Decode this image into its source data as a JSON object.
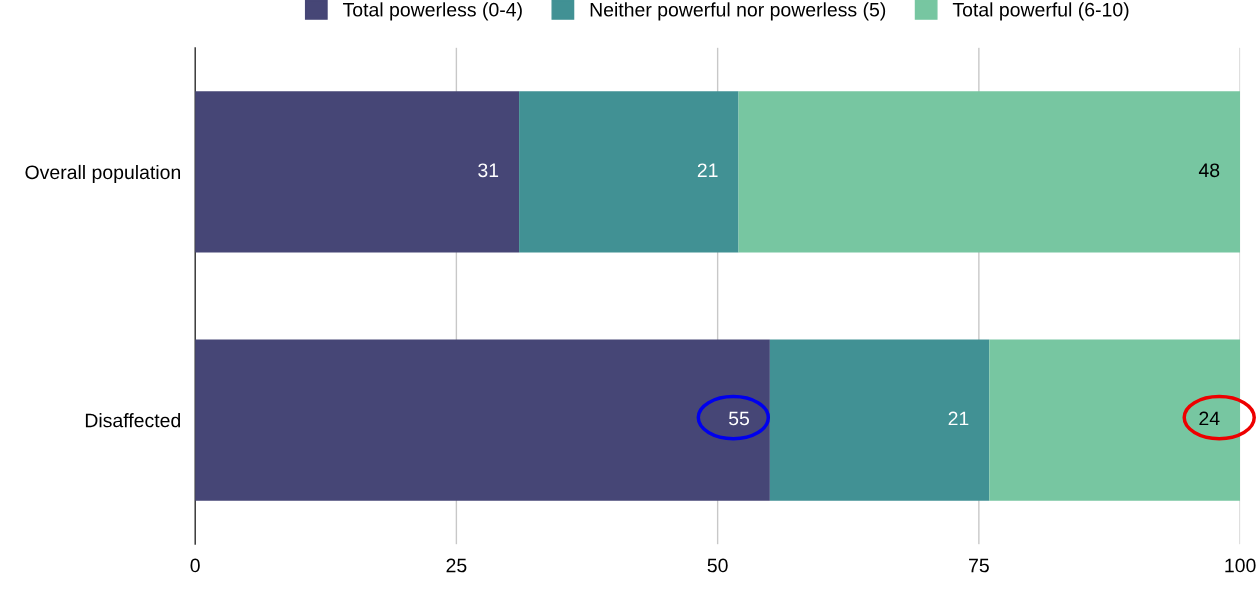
{
  "chart_data": {
    "type": "bar",
    "orientation": "horizontal",
    "stacked": true,
    "categories": [
      "Overall population",
      "Disaffected"
    ],
    "series": [
      {
        "name": "Total powerless (0-4)",
        "color": "#464676",
        "values": [
          31,
          55
        ]
      },
      {
        "name": "Neither powerful nor powerless (5)",
        "color": "#419194",
        "values": [
          21,
          21
        ]
      },
      {
        "name": "Total powerful (6-10)",
        "color": "#77c6a1",
        "values": [
          48,
          24
        ]
      }
    ],
    "xlim": [
      0,
      100
    ],
    "xticks": [
      0,
      25,
      50,
      75,
      100
    ],
    "grid": "x",
    "legend": "top",
    "data_labels": true
  }
}
